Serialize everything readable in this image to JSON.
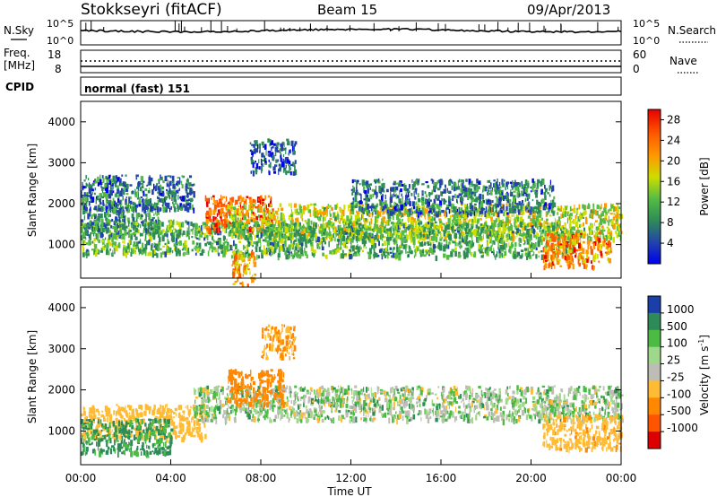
{
  "header": {
    "station": "Stokkseyri (fitACF)",
    "beam": "Beam 15",
    "date": "09/Apr/2013"
  },
  "noise_panel": {
    "left_label": "N.Sky",
    "left_ticks": [
      "10^5",
      "10^0"
    ],
    "right_ticks": [
      "10^5",
      "10^0"
    ],
    "right_label": "N.Search"
  },
  "freq_panel": {
    "left_label_1": "Freq.",
    "left_label_2": "[MHz]",
    "left_ticks": [
      "18",
      "8"
    ],
    "right_ticks": [
      "60",
      "0"
    ],
    "right_label": "Nave"
  },
  "cpid_panel": {
    "label": "CPID",
    "value": "normal (fast) 151"
  },
  "axes": {
    "ylabel": "Slant Range [km]",
    "xlabel": "Time UT",
    "yticks": [
      "4000",
      "3000",
      "2000",
      "1000"
    ],
    "xticks": [
      "00:00",
      "04:00",
      "08:00",
      "12:00",
      "16:00",
      "20:00",
      "00:00"
    ]
  },
  "colorbars": {
    "power": {
      "label": "Power [dB]",
      "ticks": [
        "28",
        "24",
        "20",
        "16",
        "12",
        "8",
        "4"
      ],
      "colors": [
        "#e60000",
        "#ff5a00",
        "#ff9900",
        "#ccdd00",
        "#55bb44",
        "#2e8b57",
        "#2244aa",
        "#0000ee"
      ]
    },
    "velocity": {
      "label": "Velocity [m s",
      "label_sup": "-1",
      "label_end": "]",
      "ticks": [
        "1000",
        "500",
        "100",
        "25",
        "-25",
        "-100",
        "-500",
        "-1000"
      ],
      "colors": [
        "#1a3fa8",
        "#2e8b57",
        "#4bbb44",
        "#9fd88a",
        "#bdbdb5",
        "#ffbb33",
        "#ff8800",
        "#ff5500",
        "#dd0000"
      ]
    }
  },
  "chart_data": [
    {
      "type": "heatmap",
      "title": "Power [dB]",
      "xlabel": "Time UT",
      "ylabel": "Slant Range [km]",
      "xlim": [
        "00:00",
        "24:00"
      ],
      "ylim": [
        180,
        4500
      ],
      "clim": [
        0,
        30
      ],
      "echo_regions": [
        {
          "t_start": 0.0,
          "t_end": 6.5,
          "range_km": 1200,
          "power_db": 12
        },
        {
          "t_start": 0.0,
          "t_end": 3.5,
          "range_km": 1650,
          "power_db": 10
        },
        {
          "t_start": 0.0,
          "t_end": 5.0,
          "range_km": 2300,
          "power_db": 8
        },
        {
          "t_start": 5.5,
          "t_end": 8.5,
          "range_km": 1800,
          "power_db": 24
        },
        {
          "t_start": 6.5,
          "t_end": 24.0,
          "range_km": 1600,
          "power_db": 16
        },
        {
          "t_start": 6.5,
          "t_end": 22.0,
          "range_km": 1150,
          "power_db": 12
        },
        {
          "t_start": 12.0,
          "t_end": 21.0,
          "range_km": 2200,
          "power_db": 8
        },
        {
          "t_start": 7.5,
          "t_end": 9.5,
          "range_km": 3200,
          "power_db": 6
        },
        {
          "t_start": 20.5,
          "t_end": 23.5,
          "range_km": 900,
          "power_db": 22
        },
        {
          "t_start": 6.7,
          "t_end": 7.7,
          "range_km": 450,
          "power_db": 20
        }
      ]
    },
    {
      "type": "heatmap",
      "title": "Velocity [m s-1]",
      "xlabel": "Time UT",
      "ylabel": "Slant Range [km]",
      "xlim": [
        "00:00",
        "24:00"
      ],
      "ylim": [
        180,
        4500
      ],
      "clim": [
        -1000,
        1000
      ],
      "echo_regions": [
        {
          "t_start": 0.0,
          "t_end": 5.5,
          "range_km": 1250,
          "velocity": -300
        },
        {
          "t_start": 5.0,
          "t_end": 24.0,
          "range_km": 1700,
          "velocity": 0
        },
        {
          "t_start": 6.5,
          "t_end": 9.0,
          "range_km": 2100,
          "velocity": -800
        },
        {
          "t_start": 8.0,
          "t_end": 9.5,
          "range_km": 3200,
          "velocity": -500
        },
        {
          "t_start": 20.5,
          "t_end": 24.0,
          "range_km": 1000,
          "velocity": -400
        },
        {
          "t_start": 0.0,
          "t_end": 4.0,
          "range_km": 900,
          "velocity": 150
        }
      ]
    }
  ]
}
